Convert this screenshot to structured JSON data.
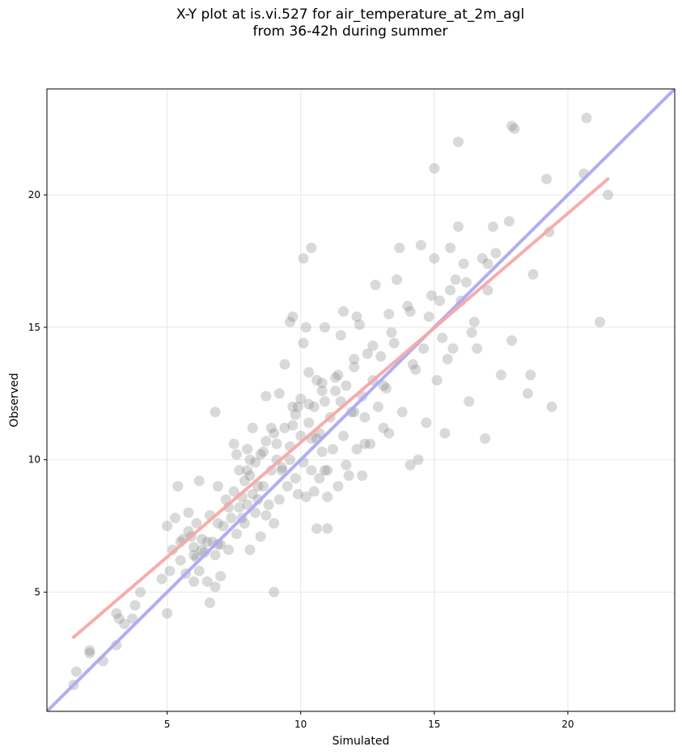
{
  "chart_data": {
    "type": "scatter",
    "title": "X-Y plot at is.vi.527 for air_temperature_at_2m_agl",
    "subtitle": "from 36-42h during summer",
    "xlabel": "Simulated",
    "ylabel": "Observed",
    "xlim": [
      0.5,
      24.0
    ],
    "ylim": [
      0.5,
      24.0
    ],
    "xticks": [
      5,
      10,
      15,
      20
    ],
    "yticks": [
      5,
      10,
      15,
      20
    ],
    "grid": true,
    "colors": {
      "points": "#808080",
      "identity_line": "#aaaaf5",
      "fit_line": "#f7a8a8"
    },
    "identity_line": [
      [
        0.5,
        0.5
      ],
      [
        24.0,
        24.0
      ]
    ],
    "fit_line": [
      [
        1.5,
        3.3
      ],
      [
        21.5,
        20.6
      ]
    ],
    "points": [
      [
        1.5,
        1.5
      ],
      [
        1.6,
        2.0
      ],
      [
        2.1,
        2.8
      ],
      [
        2.1,
        2.7
      ],
      [
        2.6,
        2.4
      ],
      [
        3.1,
        3.0
      ],
      [
        3.1,
        4.2
      ],
      [
        3.2,
        4.0
      ],
      [
        3.4,
        3.8
      ],
      [
        3.7,
        4.0
      ],
      [
        3.8,
        4.5
      ],
      [
        4.0,
        5.0
      ],
      [
        4.8,
        5.5
      ],
      [
        5.0,
        4.2
      ],
      [
        5.0,
        7.5
      ],
      [
        5.1,
        5.8
      ],
      [
        5.2,
        6.6
      ],
      [
        5.3,
        7.8
      ],
      [
        5.4,
        9.0
      ],
      [
        5.5,
        6.9
      ],
      [
        5.6,
        7.0
      ],
      [
        5.7,
        5.7
      ],
      [
        5.8,
        8.0
      ],
      [
        5.8,
        7.3
      ],
      [
        5.9,
        7.1
      ],
      [
        6.0,
        6.7
      ],
      [
        6.0,
        5.4
      ],
      [
        6.1,
        6.3
      ],
      [
        6.1,
        7.6
      ],
      [
        6.2,
        5.8
      ],
      [
        6.2,
        9.2
      ],
      [
        6.3,
        6.6
      ],
      [
        6.3,
        7.0
      ],
      [
        6.4,
        6.5
      ],
      [
        6.5,
        6.9
      ],
      [
        6.5,
        5.4
      ],
      [
        6.6,
        7.9
      ],
      [
        6.6,
        4.6
      ],
      [
        6.7,
        6.9
      ],
      [
        6.8,
        5.2
      ],
      [
        6.8,
        6.4
      ],
      [
        6.9,
        6.8
      ],
      [
        6.9,
        9.0
      ],
      [
        7.0,
        5.6
      ],
      [
        7.0,
        6.8
      ],
      [
        7.1,
        7.5
      ],
      [
        7.2,
        8.5
      ],
      [
        7.3,
        8.2
      ],
      [
        7.3,
        6.6
      ],
      [
        7.4,
        7.8
      ],
      [
        7.5,
        8.8
      ],
      [
        7.6,
        7.2
      ],
      [
        7.6,
        10.2
      ],
      [
        7.7,
        9.6
      ],
      [
        7.8,
        7.8
      ],
      [
        7.8,
        8.6
      ],
      [
        7.9,
        9.2
      ],
      [
        7.9,
        7.6
      ],
      [
        8.0,
        8.3
      ],
      [
        8.0,
        10.4
      ],
      [
        8.1,
        6.6
      ],
      [
        8.1,
        9.4
      ],
      [
        8.2,
        8.7
      ],
      [
        8.2,
        11.2
      ],
      [
        8.3,
        8.0
      ],
      [
        8.3,
        9.9
      ],
      [
        8.4,
        8.5
      ],
      [
        8.5,
        10.2
      ],
      [
        8.5,
        7.1
      ],
      [
        8.6,
        9.0
      ],
      [
        8.7,
        10.7
      ],
      [
        8.7,
        7.9
      ],
      [
        8.8,
        8.3
      ],
      [
        8.9,
        9.6
      ],
      [
        9.0,
        7.6
      ],
      [
        9.0,
        11.0
      ],
      [
        9.0,
        5.0
      ],
      [
        9.1,
        10.0
      ],
      [
        9.2,
        8.5
      ],
      [
        9.2,
        12.5
      ],
      [
        9.3,
        9.7
      ],
      [
        9.4,
        11.2
      ],
      [
        9.4,
        13.6
      ],
      [
        9.5,
        9.0
      ],
      [
        9.6,
        10.5
      ],
      [
        9.6,
        15.2
      ],
      [
        9.7,
        12.0
      ],
      [
        9.8,
        9.3
      ],
      [
        9.8,
        11.7
      ],
      [
        9.9,
        8.7
      ],
      [
        10.0,
        10.9
      ],
      [
        10.0,
        12.3
      ],
      [
        10.1,
        9.9
      ],
      [
        10.1,
        14.4
      ],
      [
        10.2,
        8.6
      ],
      [
        10.3,
        11.4
      ],
      [
        10.3,
        13.3
      ],
      [
        10.4,
        9.6
      ],
      [
        10.4,
        10.8
      ],
      [
        10.5,
        12.0
      ],
      [
        10.5,
        8.8
      ],
      [
        10.6,
        7.4
      ],
      [
        10.6,
        13.0
      ],
      [
        10.7,
        9.3
      ],
      [
        10.7,
        11.0
      ],
      [
        10.8,
        10.3
      ],
      [
        10.8,
        12.6
      ],
      [
        10.9,
        15.0
      ],
      [
        11.0,
        9.6
      ],
      [
        11.0,
        8.6
      ],
      [
        11.0,
        7.4
      ],
      [
        11.1,
        11.6
      ],
      [
        11.2,
        10.4
      ],
      [
        11.3,
        13.1
      ],
      [
        11.4,
        9.0
      ],
      [
        11.5,
        12.2
      ],
      [
        11.5,
        14.7
      ],
      [
        11.6,
        10.9
      ],
      [
        11.7,
        12.8
      ],
      [
        11.8,
        9.4
      ],
      [
        11.9,
        11.8
      ],
      [
        12.0,
        13.5
      ],
      [
        12.1,
        10.4
      ],
      [
        12.2,
        15.1
      ],
      [
        12.3,
        12.4
      ],
      [
        12.4,
        11.6
      ],
      [
        12.5,
        14.0
      ],
      [
        12.6,
        10.6
      ],
      [
        12.7,
        13.0
      ],
      [
        12.8,
        16.6
      ],
      [
        12.9,
        12.0
      ],
      [
        13.0,
        13.9
      ],
      [
        13.1,
        11.2
      ],
      [
        13.2,
        12.7
      ],
      [
        13.3,
        15.5
      ],
      [
        13.5,
        14.4
      ],
      [
        13.6,
        16.8
      ],
      [
        13.8,
        11.8
      ],
      [
        14.0,
        15.8
      ],
      [
        14.2,
        13.6
      ],
      [
        14.4,
        10.0
      ],
      [
        14.5,
        18.1
      ],
      [
        14.6,
        14.2
      ],
      [
        14.8,
        15.4
      ],
      [
        15.0,
        17.6
      ],
      [
        15.1,
        13.0
      ],
      [
        15.2,
        16.0
      ],
      [
        15.4,
        11.0
      ],
      [
        15.5,
        13.8
      ],
      [
        15.6,
        18.0
      ],
      [
        15.7,
        14.2
      ],
      [
        15.8,
        16.8
      ],
      [
        15.9,
        18.8
      ],
      [
        16.0,
        16.0
      ],
      [
        16.1,
        17.4
      ],
      [
        16.3,
        12.2
      ],
      [
        16.5,
        15.2
      ],
      [
        16.9,
        10.8
      ],
      [
        17.0,
        16.4
      ],
      [
        17.0,
        17.4
      ],
      [
        17.2,
        18.8
      ],
      [
        17.5,
        13.2
      ],
      [
        17.8,
        19.0
      ],
      [
        18.0,
        22.5
      ],
      [
        18.5,
        12.5
      ],
      [
        18.7,
        17.0
      ],
      [
        19.3,
        18.6
      ],
      [
        19.4,
        12.0
      ],
      [
        20.6,
        20.8
      ],
      [
        20.7,
        22.9
      ],
      [
        21.2,
        15.2
      ],
      [
        21.5,
        20.0
      ],
      [
        15.0,
        21.0
      ],
      [
        15.9,
        22.0
      ],
      [
        19.2,
        20.6
      ],
      [
        17.9,
        22.6
      ],
      [
        14.1,
        9.8
      ],
      [
        11.6,
        15.6
      ],
      [
        12.1,
        15.4
      ],
      [
        10.4,
        18.0
      ],
      [
        10.1,
        17.6
      ],
      [
        13.7,
        18.0
      ],
      [
        9.9,
        12.0
      ],
      [
        10.9,
        12.2
      ],
      [
        11.3,
        12.6
      ],
      [
        8.7,
        12.4
      ],
      [
        9.7,
        15.4
      ],
      [
        10.2,
        15.0
      ],
      [
        12.3,
        9.4
      ],
      [
        6.8,
        11.8
      ],
      [
        7.5,
        10.6
      ],
      [
        8.1,
        10.0
      ],
      [
        8.9,
        11.2
      ],
      [
        9.6,
        10.0
      ],
      [
        10.9,
        9.6
      ],
      [
        11.7,
        9.8
      ],
      [
        12.4,
        10.6
      ],
      [
        13.3,
        11.0
      ],
      [
        14.7,
        11.4
      ],
      [
        16.6,
        14.2
      ],
      [
        17.9,
        14.5
      ],
      [
        18.6,
        13.2
      ],
      [
        16.4,
        14.8
      ],
      [
        15.3,
        14.6
      ],
      [
        14.3,
        13.4
      ],
      [
        13.1,
        12.8
      ],
      [
        12.0,
        11.8
      ],
      [
        10.6,
        10.8
      ],
      [
        9.3,
        9.6
      ],
      [
        8.4,
        9.0
      ],
      [
        7.7,
        8.2
      ],
      [
        6.9,
        7.6
      ],
      [
        6.0,
        6.4
      ],
      [
        5.5,
        6.2
      ],
      [
        8.0,
        9.6
      ],
      [
        8.6,
        10.3
      ],
      [
        9.1,
        10.6
      ],
      [
        9.7,
        11.3
      ],
      [
        10.3,
        12.1
      ],
      [
        10.8,
        12.9
      ],
      [
        11.4,
        13.2
      ],
      [
        12.0,
        13.8
      ],
      [
        12.7,
        14.3
      ],
      [
        13.4,
        14.8
      ],
      [
        14.1,
        15.6
      ],
      [
        14.9,
        16.2
      ],
      [
        15.6,
        16.4
      ],
      [
        16.2,
        16.7
      ],
      [
        17.3,
        17.8
      ],
      [
        16.8,
        17.6
      ]
    ]
  }
}
